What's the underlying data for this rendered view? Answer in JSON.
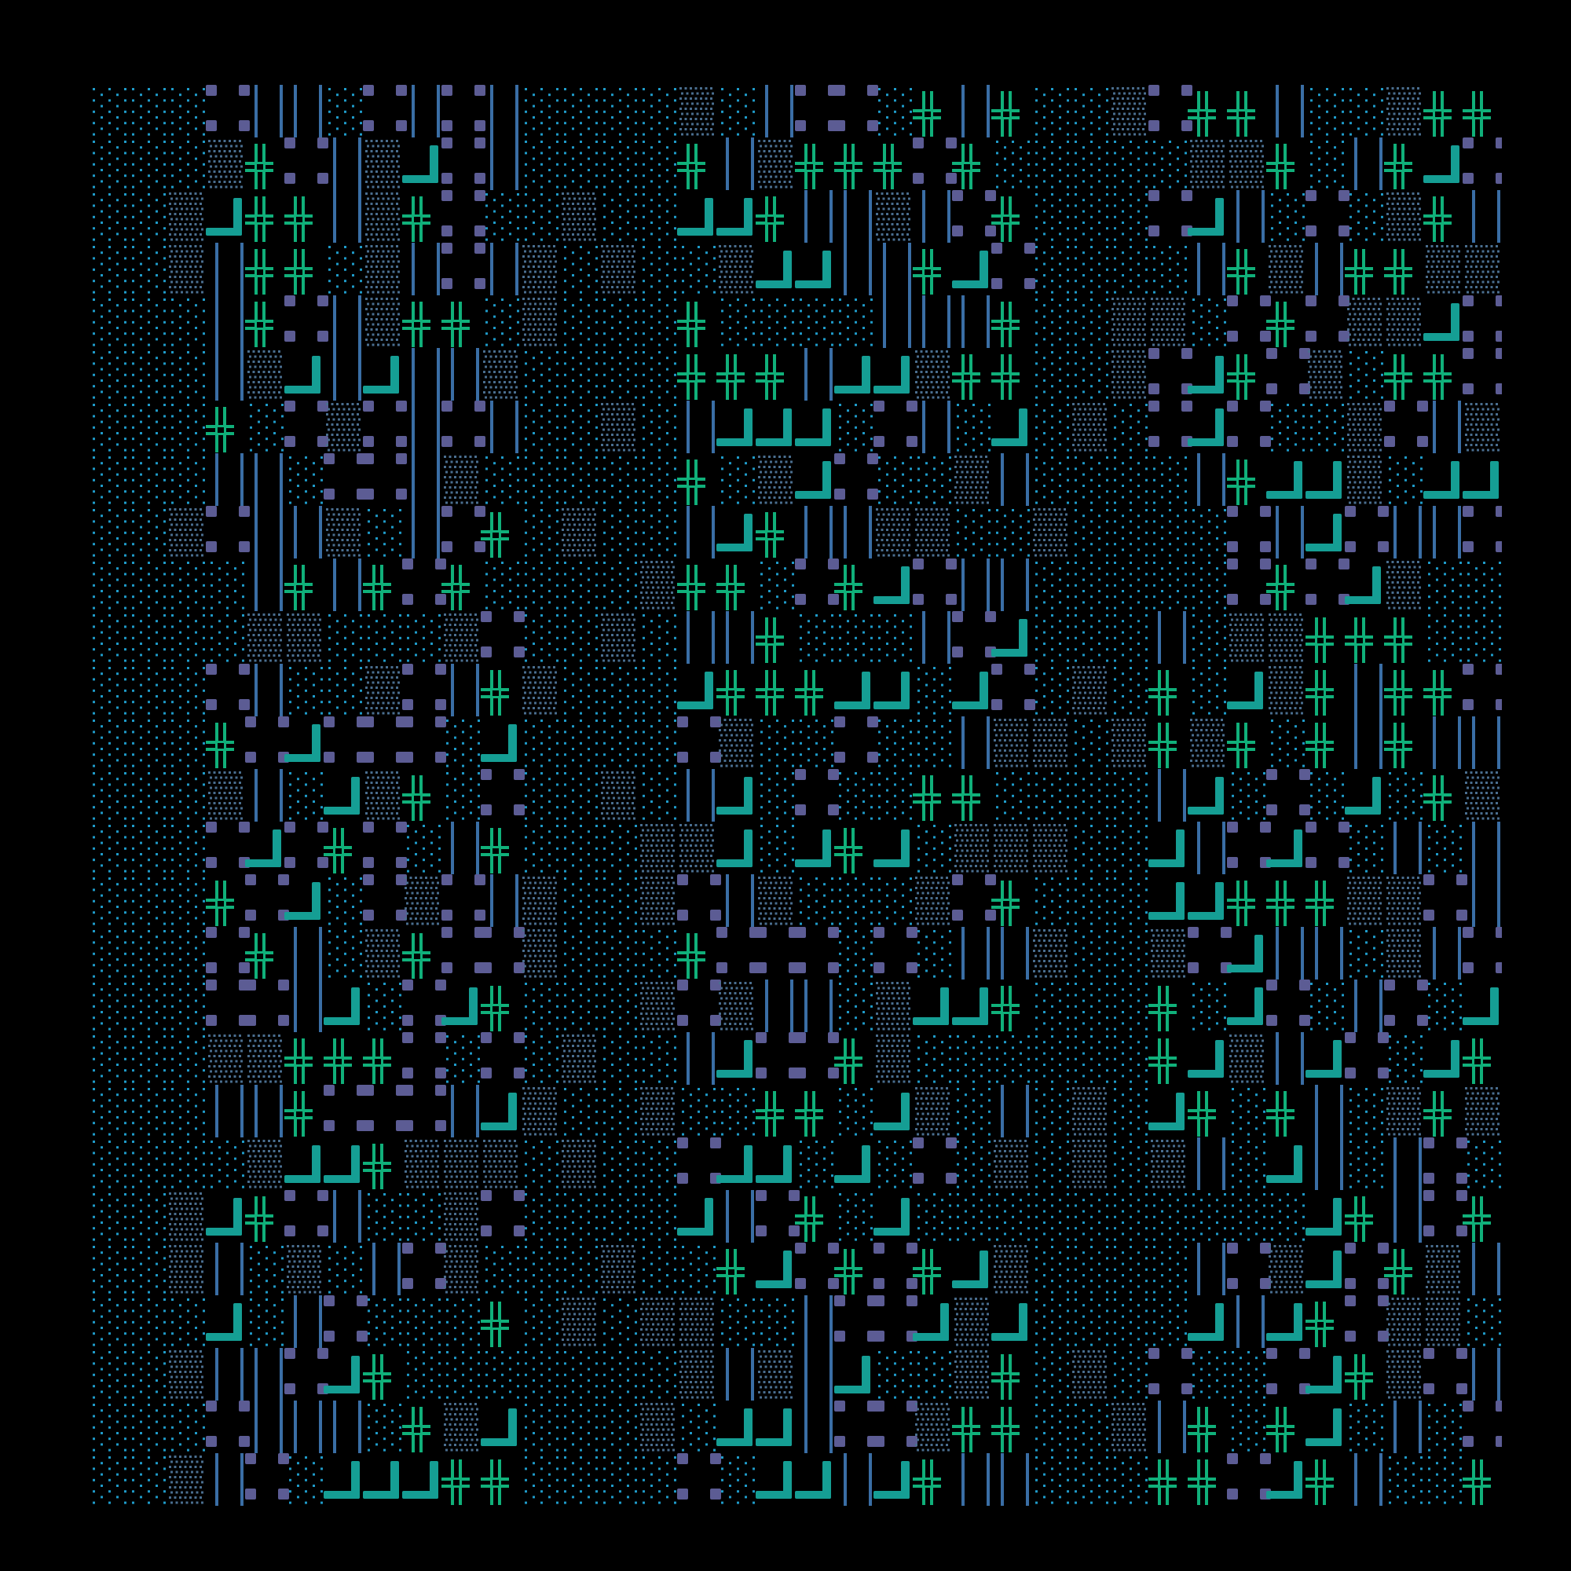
{
  "artwork": {
    "grid": {
      "columns": 36,
      "rows": 27
    },
    "background": "#000000",
    "glyphs": [
      {
        "name": "sparse-dots",
        "color": "#1f9bc9"
      },
      {
        "name": "dense-dots",
        "color": "#4a6e8f"
      },
      {
        "name": "double-cross",
        "color": "#10b07a"
      },
      {
        "name": "corner",
        "color": "#159e94"
      },
      {
        "name": "double-bar",
        "color": "#3a6ea5"
      },
      {
        "name": "corner-squares",
        "color": "#5c5c94"
      }
    ]
  }
}
